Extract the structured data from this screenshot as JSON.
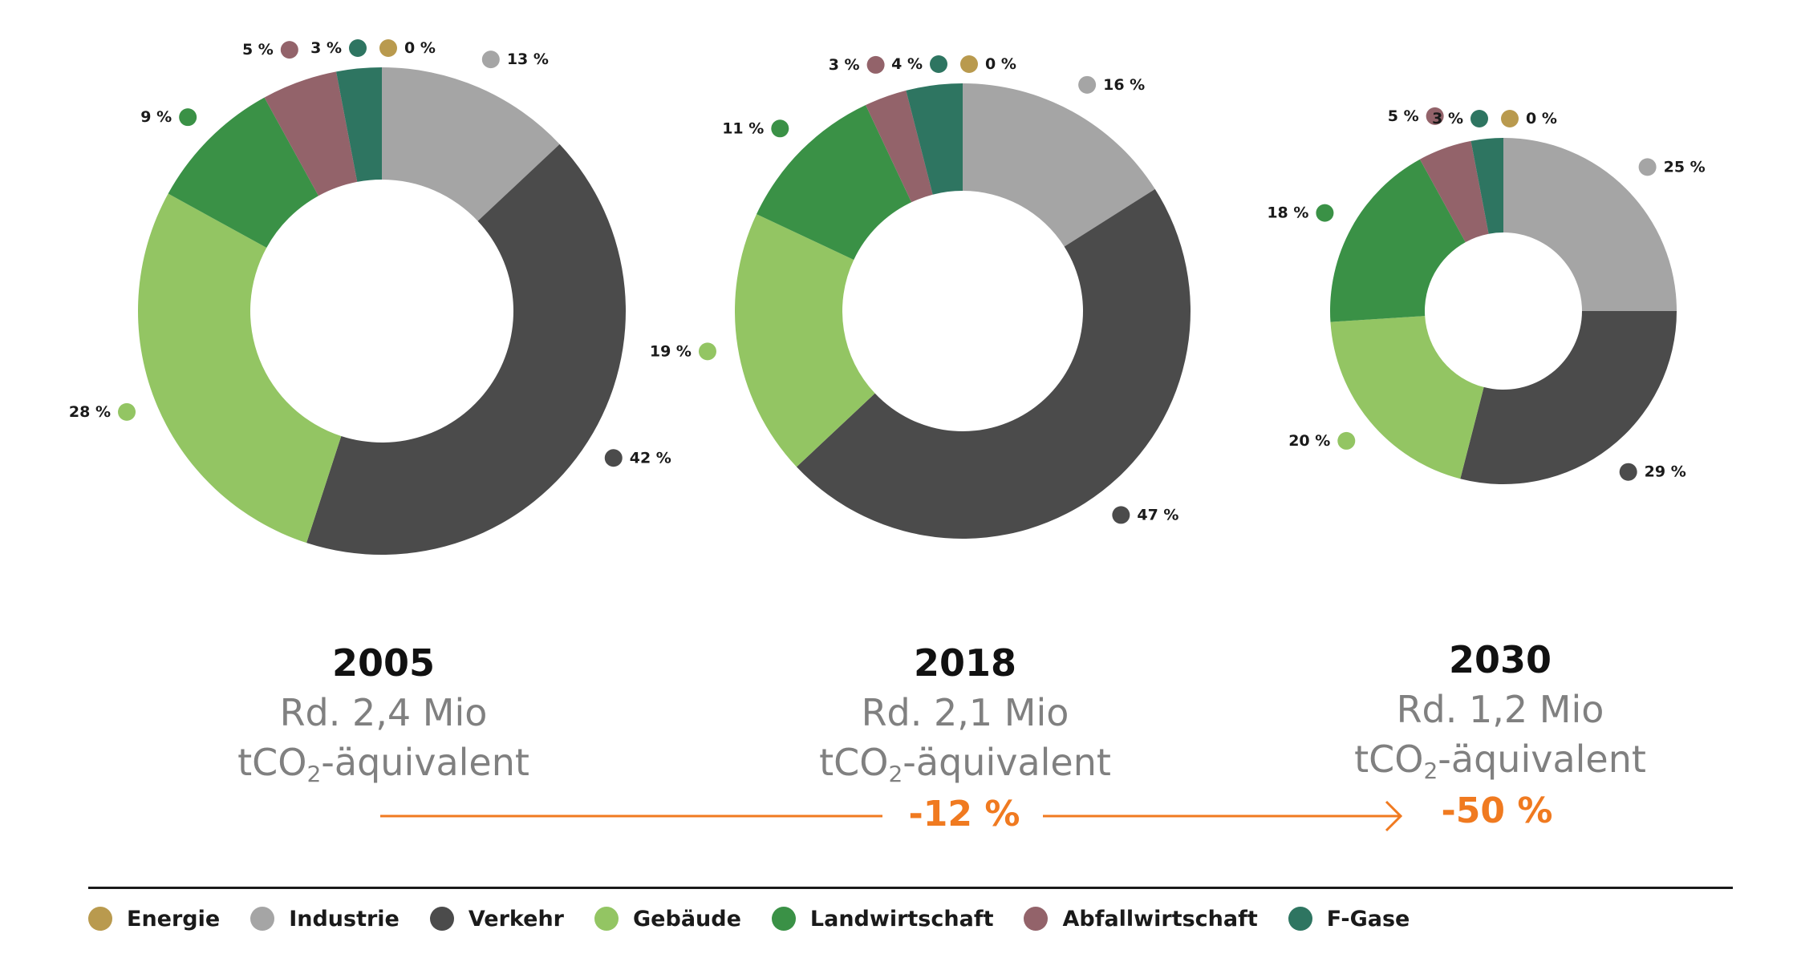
{
  "chart_data": {
    "type": "donut",
    "categories": [
      "Energie",
      "Industrie",
      "Verkehr",
      "Gebäude",
      "Landwirtschaft",
      "Abfallwirtschaft",
      "F-Gase"
    ],
    "colors": {
      "Energie": "#b99a4e",
      "Industrie": "#a5a5a5",
      "Verkehr": "#4b4b4b",
      "Gebäude": "#93c563",
      "Landwirtschaft": "#3a9146",
      "Abfallwirtschaft": "#93636a",
      "F-Gase": "#2e7561"
    },
    "charts": [
      {
        "year": "2005",
        "total": "Rd. 2,4 Mio",
        "unit_prefix": "tCO",
        "unit_sub": "2",
        "unit_suffix": "-äquivalent",
        "values": {
          "Energie": 0,
          "Industrie": 13,
          "Verkehr": 42,
          "Gebäude": 28,
          "Landwirtschaft": 9,
          "Abfallwirtschaft": 5,
          "F-Gase": 3
        },
        "labels": {
          "Energie": "0 %",
          "Industrie": "13 %",
          "Verkehr": "42 %",
          "Gebäude": "28 %",
          "Landwirtschaft": "9 %",
          "Abfallwirtschaft": "5 %",
          "F-Gase": "3 %"
        }
      },
      {
        "year": "2018",
        "total": "Rd. 2,1 Mio",
        "unit_prefix": "tCO",
        "unit_sub": "2",
        "unit_suffix": "-äquivalent",
        "values": {
          "Energie": 0,
          "Industrie": 16,
          "Verkehr": 47,
          "Gebäude": 19,
          "Landwirtschaft": 11,
          "Abfallwirtschaft": 3,
          "F-Gase": 4
        },
        "labels": {
          "Energie": "0 %",
          "Industrie": "16 %",
          "Verkehr": "47 %",
          "Gebäude": "19 %",
          "Landwirtschaft": "11 %",
          "Abfallwirtschaft": "3 %",
          "F-Gase": "4 %"
        }
      },
      {
        "year": "2030",
        "total": "Rd. 1,2 Mio",
        "unit_prefix": "tCO",
        "unit_sub": "2",
        "unit_suffix": "-äquivalent",
        "values": {
          "Energie": 0,
          "Industrie": 25,
          "Verkehr": 29,
          "Gebäude": 20,
          "Landwirtschaft": 18,
          "Abfallwirtschaft": 5,
          "F-Gase": 3
        },
        "labels": {
          "Energie": "0 %",
          "Industrie": "25 %",
          "Verkehr": "29 %",
          "Gebäude": "20 %",
          "Landwirtschaft": "18 %",
          "Abfallwirtschaft": "5 %",
          "F-Gase": "3 %"
        }
      }
    ],
    "changes": [
      "-12 %",
      "-50 %"
    ],
    "legend": [
      "Energie",
      "Industrie",
      "Verkehr",
      "Gebäude",
      "Landwirtschaft",
      "Abfallwirtschaft",
      "F-Gase"
    ]
  }
}
